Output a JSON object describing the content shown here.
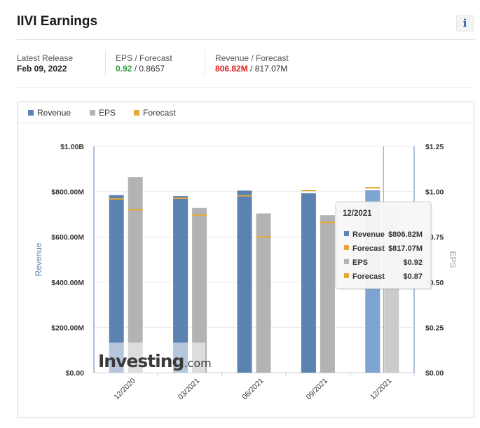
{
  "header": {
    "title": "IIVI Earnings",
    "info_icon": "i"
  },
  "stats": {
    "latest_release": {
      "label": "Latest Release",
      "value": "Feb 09, 2022"
    },
    "eps": {
      "label": "EPS / Forecast",
      "actual": "0.92",
      "separator": " / ",
      "forecast": "0.8657"
    },
    "revenue": {
      "label": "Revenue / Forecast",
      "actual": "806.82M",
      "separator": " / ",
      "forecast": "817.07M"
    }
  },
  "colors": {
    "revenue": "#5b82b0",
    "revenue_highlight": "#7fa3d0",
    "eps": "#b3b3b3",
    "eps_highlight": "#cbcbcb",
    "forecast": "#e8a838",
    "positive": "#2a9d3b",
    "negative": "#d91e1e"
  },
  "legend": [
    {
      "label": "Revenue",
      "color": "#5b82b0"
    },
    {
      "label": "EPS",
      "color": "#b3b3b3"
    },
    {
      "label": "Forecast",
      "color": "#e8a838"
    }
  ],
  "chart_data": {
    "type": "bar",
    "categories": [
      "12/2020",
      "03/2021",
      "06/2021",
      "09/2021",
      "12/2021"
    ],
    "series": [
      {
        "name": "Revenue",
        "axis": "left",
        "values": [
          785,
          780,
          805,
          793,
          806.82
        ],
        "forecast": [
          768,
          771,
          782,
          805,
          817.07
        ]
      },
      {
        "name": "EPS",
        "axis": "right",
        "values": [
          1.08,
          0.91,
          0.88,
          0.87,
          0.92
        ],
        "forecast": [
          0.9,
          0.87,
          0.75,
          0.83,
          0.87
        ]
      }
    ],
    "ylabel": "Revenue",
    "y2label": "EPS",
    "ylim": [
      0,
      1000
    ],
    "y2lim": [
      0,
      1.25
    ],
    "yticks": [
      "$0.00",
      "$200.00M",
      "$400.00M",
      "$600.00M",
      "$800.00M",
      "$1.00B"
    ],
    "y2ticks": [
      "$0.00",
      "$0.25",
      "$0.50",
      "$0.75",
      "$1.00",
      "$1.25"
    ],
    "grid": true,
    "legend_position": "top-left"
  },
  "tooltip": {
    "title": "12/2021",
    "rows": [
      {
        "label": "Revenue",
        "value": "$806.82M",
        "color": "#5b82b0"
      },
      {
        "label": "Forecast",
        "value": "$817.07M",
        "color": "#e8a838"
      },
      {
        "label": "EPS",
        "value": "$0.92",
        "color": "#b3b3b3"
      },
      {
        "label": "Forecast",
        "value": "$0.87",
        "color": "#e8a838"
      }
    ]
  },
  "watermark": "Investing.com"
}
